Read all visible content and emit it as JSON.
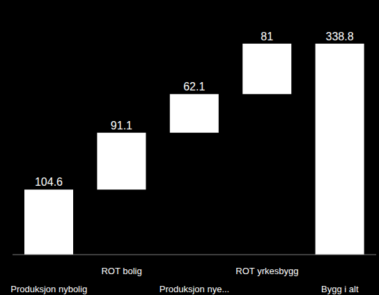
{
  "chart_data": {
    "type": "waterfall",
    "categories": [
      "Produksjon nybolig",
      "ROT bolig",
      "Produksjon nye...",
      "ROT yrkesbygg",
      "Bygg i alt"
    ],
    "values": [
      104.6,
      91.1,
      62.1,
      81,
      338.8
    ],
    "color": "#ffffff",
    "ylim": [
      0,
      400
    ],
    "data_labels": true,
    "tick_labels": "x"
  }
}
